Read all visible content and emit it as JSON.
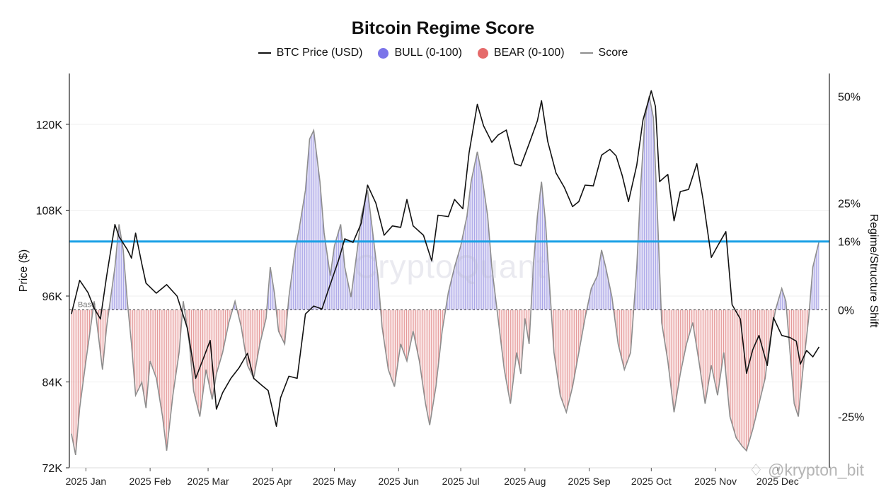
{
  "watermarks": {
    "center": "CryptoQuant",
    "corner": "♢ @krypton_bit"
  },
  "colors": {
    "price": "#111111",
    "bull_fill": "#c6c2ef",
    "bull_hatch": "#6a63d6",
    "bear_fill": "#f3c6c6",
    "bear_hatch": "#c83a3a",
    "score": "#8e8e8e",
    "threshold": "#1aa0e6",
    "bull_dot": "#7b74e9",
    "bear_dot": "#e56a6a"
  },
  "chart_data": {
    "type": "line",
    "title": "Bitcoin Regime Score",
    "legend": [
      "BTC Price (USD)",
      "BULL (0-100)",
      "BEAR (0-100)",
      "Score"
    ],
    "legend_position": "top-center",
    "grid": true,
    "x_axis": {
      "range": [
        "2024-12-29",
        "2025-12-31"
      ],
      "ticks": [
        {
          "date": "2025-01-06",
          "label": "2025 Jan"
        },
        {
          "date": "2025-02-06",
          "label": "2025 Feb"
        },
        {
          "date": "2025-03-06",
          "label": "2025 Mar"
        },
        {
          "date": "2025-04-06",
          "label": "2025 Apr"
        },
        {
          "date": "2025-05-06",
          "label": "2025 May"
        },
        {
          "date": "2025-06-06",
          "label": "2025 Jun"
        },
        {
          "date": "2025-07-06",
          "label": "2025 Jul"
        },
        {
          "date": "2025-08-06",
          "label": "2025 Aug"
        },
        {
          "date": "2025-09-06",
          "label": "2025 Sep"
        },
        {
          "date": "2025-10-06",
          "label": "2025 Oct"
        },
        {
          "date": "2025-11-06",
          "label": "2025 Nov"
        },
        {
          "date": "2025-12-06",
          "label": "2025 Dec"
        }
      ]
    },
    "y_left": {
      "label": "Price ($)",
      "range": [
        72000,
        127500
      ],
      "ticks": [
        {
          "value": 72000,
          "label": "72K"
        },
        {
          "value": 84000,
          "label": "84K"
        },
        {
          "value": 96000,
          "label": "96K"
        },
        {
          "value": 108000,
          "label": "108K"
        },
        {
          "value": 120000,
          "label": "120K"
        }
      ]
    },
    "y_right": {
      "label": "Regime/Structure Shift",
      "range": [
        -37,
        56
      ],
      "ticks": [
        {
          "value": 50,
          "label": "50%"
        },
        {
          "value": 25,
          "label": "25%"
        },
        {
          "value": 16,
          "label": "16%"
        },
        {
          "value": 0,
          "label": "0%"
        },
        {
          "value": -25,
          "label": "-25%"
        }
      ]
    },
    "reference_lines": [
      {
        "axis": "right",
        "value": 16,
        "label": "16%"
      },
      {
        "axis": "right",
        "value": 0,
        "label": "Base"
      }
    ],
    "series": [
      {
        "name": "BTC Price (USD)",
        "axis": "left",
        "points": [
          [
            "2024-12-30",
            93500
          ],
          [
            "2025-01-03",
            98200
          ],
          [
            "2025-01-07",
            96500
          ],
          [
            "2025-01-10",
            94300
          ],
          [
            "2025-01-13",
            92800
          ],
          [
            "2025-01-16",
            98800
          ],
          [
            "2025-01-20",
            106000
          ],
          [
            "2025-01-22",
            104300
          ],
          [
            "2025-01-26",
            102500
          ],
          [
            "2025-01-28",
            101300
          ],
          [
            "2025-01-30",
            104800
          ],
          [
            "2025-02-02",
            100500
          ],
          [
            "2025-02-04",
            97800
          ],
          [
            "2025-02-09",
            96400
          ],
          [
            "2025-02-14",
            97600
          ],
          [
            "2025-02-19",
            96000
          ],
          [
            "2025-02-24",
            91500
          ],
          [
            "2025-02-28",
            84500
          ],
          [
            "2025-03-04",
            87500
          ],
          [
            "2025-03-07",
            89800
          ],
          [
            "2025-03-10",
            80200
          ],
          [
            "2025-03-13",
            82500
          ],
          [
            "2025-03-17",
            84500
          ],
          [
            "2025-03-21",
            86000
          ],
          [
            "2025-03-25",
            88000
          ],
          [
            "2025-03-28",
            84500
          ],
          [
            "2025-04-01",
            83500
          ],
          [
            "2025-04-04",
            82800
          ],
          [
            "2025-04-08",
            77800
          ],
          [
            "2025-04-10",
            81800
          ],
          [
            "2025-04-14",
            84800
          ],
          [
            "2025-04-18",
            84500
          ],
          [
            "2025-04-22",
            93500
          ],
          [
            "2025-04-26",
            94600
          ],
          [
            "2025-04-30",
            94200
          ],
          [
            "2025-05-03",
            96800
          ],
          [
            "2025-05-08",
            101000
          ],
          [
            "2025-05-11",
            104000
          ],
          [
            "2025-05-15",
            103500
          ],
          [
            "2025-05-19",
            106200
          ],
          [
            "2025-05-22",
            111500
          ],
          [
            "2025-05-26",
            109000
          ],
          [
            "2025-05-30",
            104500
          ],
          [
            "2025-06-03",
            105800
          ],
          [
            "2025-06-07",
            105600
          ],
          [
            "2025-06-10",
            109500
          ],
          [
            "2025-06-13",
            105800
          ],
          [
            "2025-06-18",
            104500
          ],
          [
            "2025-06-22",
            100900
          ],
          [
            "2025-06-25",
            107300
          ],
          [
            "2025-06-30",
            107100
          ],
          [
            "2025-07-03",
            109500
          ],
          [
            "2025-07-07",
            108200
          ],
          [
            "2025-07-10",
            116000
          ],
          [
            "2025-07-14",
            122800
          ],
          [
            "2025-07-17",
            119800
          ],
          [
            "2025-07-21",
            117500
          ],
          [
            "2025-07-24",
            118500
          ],
          [
            "2025-07-28",
            119200
          ],
          [
            "2025-08-01",
            114500
          ],
          [
            "2025-08-04",
            114200
          ],
          [
            "2025-08-08",
            117300
          ],
          [
            "2025-08-12",
            120500
          ],
          [
            "2025-08-14",
            123300
          ],
          [
            "2025-08-17",
            117600
          ],
          [
            "2025-08-21",
            113200
          ],
          [
            "2025-08-25",
            111200
          ],
          [
            "2025-08-29",
            108500
          ],
          [
            "2025-09-01",
            109200
          ],
          [
            "2025-09-04",
            111500
          ],
          [
            "2025-09-08",
            111400
          ],
          [
            "2025-09-12",
            115700
          ],
          [
            "2025-09-16",
            116500
          ],
          [
            "2025-09-19",
            115600
          ],
          [
            "2025-09-22",
            112800
          ],
          [
            "2025-09-25",
            109200
          ],
          [
            "2025-09-29",
            114300
          ],
          [
            "2025-10-02",
            120600
          ],
          [
            "2025-10-06",
            124700
          ],
          [
            "2025-10-08",
            122500
          ],
          [
            "2025-10-10",
            112000
          ],
          [
            "2025-10-14",
            113000
          ],
          [
            "2025-10-17",
            106500
          ],
          [
            "2025-10-20",
            110600
          ],
          [
            "2025-10-24",
            110900
          ],
          [
            "2025-10-28",
            114500
          ],
          [
            "2025-10-31",
            109500
          ],
          [
            "2025-11-04",
            101400
          ],
          [
            "2025-11-07",
            103000
          ],
          [
            "2025-11-11",
            105000
          ],
          [
            "2025-11-14",
            94800
          ],
          [
            "2025-11-18",
            92800
          ],
          [
            "2025-11-21",
            85200
          ],
          [
            "2025-11-24",
            88500
          ],
          [
            "2025-11-27",
            90500
          ],
          [
            "2025-12-01",
            86300
          ],
          [
            "2025-12-04",
            93000
          ],
          [
            "2025-12-08",
            90500
          ],
          [
            "2025-12-12",
            90200
          ],
          [
            "2025-12-15",
            89700
          ],
          [
            "2025-12-17",
            86500
          ],
          [
            "2025-12-20",
            88400
          ],
          [
            "2025-12-23",
            87500
          ],
          [
            "2025-12-26",
            88900
          ]
        ]
      },
      {
        "name": "Score",
        "axis": "right",
        "fill": "BULL (0-100) above 0%, BEAR (0-100) below 0%",
        "points": [
          [
            "2024-12-30",
            -29
          ],
          [
            "2025-01-01",
            -34
          ],
          [
            "2025-01-03",
            -23
          ],
          [
            "2025-01-06",
            -12
          ],
          [
            "2025-01-08",
            -5
          ],
          [
            "2025-01-10",
            2
          ],
          [
            "2025-01-12",
            -6
          ],
          [
            "2025-01-14",
            -14
          ],
          [
            "2025-01-16",
            -4
          ],
          [
            "2025-01-18",
            3
          ],
          [
            "2025-01-20",
            10
          ],
          [
            "2025-01-22",
            20
          ],
          [
            "2025-01-24",
            14
          ],
          [
            "2025-01-26",
            2
          ],
          [
            "2025-01-28",
            -8
          ],
          [
            "2025-01-30",
            -20
          ],
          [
            "2025-02-02",
            -17
          ],
          [
            "2025-02-04",
            -23
          ],
          [
            "2025-02-06",
            -12
          ],
          [
            "2025-02-09",
            -16
          ],
          [
            "2025-02-12",
            -25
          ],
          [
            "2025-02-14",
            -33
          ],
          [
            "2025-02-17",
            -20
          ],
          [
            "2025-02-20",
            -10
          ],
          [
            "2025-02-22",
            2
          ],
          [
            "2025-02-25",
            -8
          ],
          [
            "2025-02-27",
            -19
          ],
          [
            "2025-03-02",
            -25
          ],
          [
            "2025-03-05",
            -14
          ],
          [
            "2025-03-08",
            -21
          ],
          [
            "2025-03-10",
            -15
          ],
          [
            "2025-03-13",
            -10
          ],
          [
            "2025-03-16",
            -3
          ],
          [
            "2025-03-19",
            2
          ],
          [
            "2025-03-22",
            -4
          ],
          [
            "2025-03-25",
            -13
          ],
          [
            "2025-03-28",
            -16
          ],
          [
            "2025-03-31",
            -8
          ],
          [
            "2025-04-03",
            -2
          ],
          [
            "2025-04-05",
            10
          ],
          [
            "2025-04-07",
            4
          ],
          [
            "2025-04-09",
            -5
          ],
          [
            "2025-04-12",
            -8
          ],
          [
            "2025-04-14",
            3
          ],
          [
            "2025-04-17",
            14
          ],
          [
            "2025-04-19",
            19
          ],
          [
            "2025-04-22",
            28
          ],
          [
            "2025-04-24",
            40
          ],
          [
            "2025-04-26",
            42
          ],
          [
            "2025-04-29",
            30
          ],
          [
            "2025-05-01",
            18
          ],
          [
            "2025-05-04",
            8
          ],
          [
            "2025-05-06",
            15
          ],
          [
            "2025-05-09",
            20
          ],
          [
            "2025-05-11",
            10
          ],
          [
            "2025-05-14",
            3
          ],
          [
            "2025-05-17",
            14
          ],
          [
            "2025-05-19",
            22
          ],
          [
            "2025-05-22",
            28
          ],
          [
            "2025-05-24",
            20
          ],
          [
            "2025-05-27",
            8
          ],
          [
            "2025-05-29",
            -4
          ],
          [
            "2025-06-01",
            -14
          ],
          [
            "2025-06-04",
            -18
          ],
          [
            "2025-06-07",
            -8
          ],
          [
            "2025-06-10",
            -12
          ],
          [
            "2025-06-13",
            -5
          ],
          [
            "2025-06-16",
            -12
          ],
          [
            "2025-06-19",
            -22
          ],
          [
            "2025-06-21",
            -27
          ],
          [
            "2025-06-24",
            -18
          ],
          [
            "2025-06-27",
            -5
          ],
          [
            "2025-06-30",
            4
          ],
          [
            "2025-07-03",
            10
          ],
          [
            "2025-07-06",
            15
          ],
          [
            "2025-07-09",
            22
          ],
          [
            "2025-07-11",
            30
          ],
          [
            "2025-07-14",
            37
          ],
          [
            "2025-07-16",
            32
          ],
          [
            "2025-07-19",
            22
          ],
          [
            "2025-07-21",
            10
          ],
          [
            "2025-07-24",
            -2
          ],
          [
            "2025-07-27",
            -14
          ],
          [
            "2025-07-30",
            -22
          ],
          [
            "2025-08-02",
            -10
          ],
          [
            "2025-08-04",
            -15
          ],
          [
            "2025-08-06",
            -2
          ],
          [
            "2025-08-08",
            -8
          ],
          [
            "2025-08-10",
            10
          ],
          [
            "2025-08-12",
            22
          ],
          [
            "2025-08-14",
            30
          ],
          [
            "2025-08-16",
            20
          ],
          [
            "2025-08-18",
            5
          ],
          [
            "2025-08-20",
            -10
          ],
          [
            "2025-08-23",
            -20
          ],
          [
            "2025-08-26",
            -24
          ],
          [
            "2025-08-29",
            -18
          ],
          [
            "2025-09-01",
            -10
          ],
          [
            "2025-09-04",
            -2
          ],
          [
            "2025-09-07",
            5
          ],
          [
            "2025-09-10",
            8
          ],
          [
            "2025-09-12",
            14
          ],
          [
            "2025-09-14",
            10
          ],
          [
            "2025-09-17",
            3
          ],
          [
            "2025-09-20",
            -8
          ],
          [
            "2025-09-23",
            -14
          ],
          [
            "2025-09-26",
            -10
          ],
          [
            "2025-09-29",
            10
          ],
          [
            "2025-10-01",
            30
          ],
          [
            "2025-10-03",
            45
          ],
          [
            "2025-10-05",
            50
          ],
          [
            "2025-10-07",
            45
          ],
          [
            "2025-10-09",
            22
          ],
          [
            "2025-10-11",
            -3
          ],
          [
            "2025-10-14",
            -12
          ],
          [
            "2025-10-17",
            -24
          ],
          [
            "2025-10-20",
            -15
          ],
          [
            "2025-10-23",
            -8
          ],
          [
            "2025-10-26",
            -3
          ],
          [
            "2025-10-29",
            -12
          ],
          [
            "2025-11-01",
            -22
          ],
          [
            "2025-11-04",
            -13
          ],
          [
            "2025-11-07",
            -20
          ],
          [
            "2025-11-10",
            -10
          ],
          [
            "2025-11-13",
            -25
          ],
          [
            "2025-11-16",
            -30
          ],
          [
            "2025-11-19",
            -32
          ],
          [
            "2025-11-21",
            -33
          ],
          [
            "2025-11-24",
            -28
          ],
          [
            "2025-11-27",
            -22
          ],
          [
            "2025-11-30",
            -16
          ],
          [
            "2025-12-02",
            -8
          ],
          [
            "2025-12-05",
            0
          ],
          [
            "2025-12-08",
            5
          ],
          [
            "2025-12-10",
            2
          ],
          [
            "2025-12-12",
            -10
          ],
          [
            "2025-12-14",
            -22
          ],
          [
            "2025-12-16",
            -25
          ],
          [
            "2025-12-18",
            -15
          ],
          [
            "2025-12-21",
            -2
          ],
          [
            "2025-12-23",
            10
          ],
          [
            "2025-12-26",
            16
          ]
        ]
      }
    ]
  }
}
